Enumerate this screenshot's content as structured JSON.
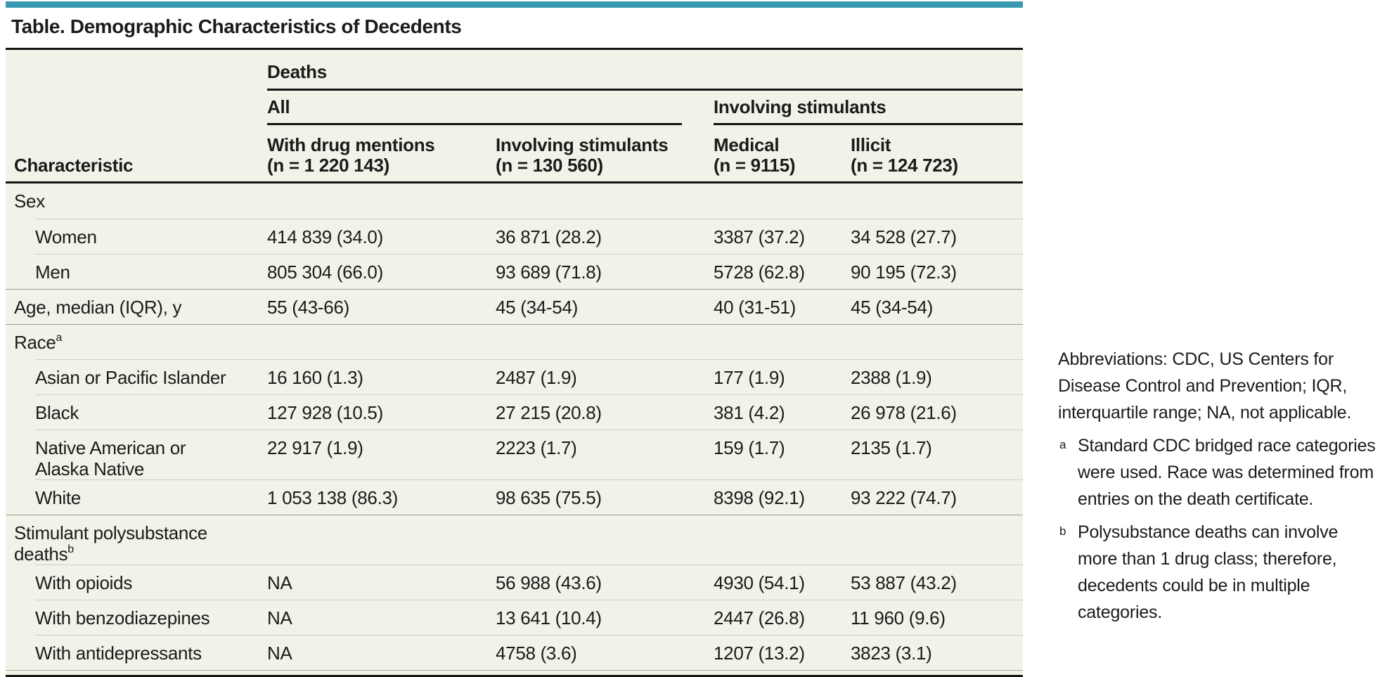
{
  "colors": {
    "accent": "#3a99b2",
    "table_background": "#f3f2e8",
    "rule_heavy": "#141414",
    "rule_light": "#cfcec1",
    "rule_group": "#9e9d91"
  },
  "title": "Table. Demographic Characteristics of Decedents",
  "table": {
    "deaths_spanner": "Deaths",
    "all_spanner": "All",
    "involving_stimulants_spanner": "Involving stimulants",
    "columns": {
      "characteristic": "Characteristic",
      "with_drug_mentions": {
        "line1": "With drug mentions",
        "line2": "(n = 1 220 143)"
      },
      "involving_stimulants": {
        "line1": "Involving stimulants",
        "line2": "(n = 130 560)"
      },
      "medical": {
        "line1": "Medical",
        "line2": "(n = 9115)"
      },
      "illicit": {
        "line1": "Illicit",
        "line2": "(n = 124 723)"
      }
    },
    "rows": [
      {
        "type": "group",
        "label": "Sex"
      },
      {
        "type": "item",
        "label": "Women",
        "cells": [
          "414 839 (34.0)",
          "36 871 (28.2)",
          "3387 (37.2)",
          "34 528 (27.7)"
        ]
      },
      {
        "type": "item",
        "label": "Men",
        "cells": [
          "805 304 (66.0)",
          "93 689 (71.8)",
          "5728 (62.8)",
          "90 195 (72.3)"
        ]
      },
      {
        "type": "flat",
        "label": "Age, median (IQR), y",
        "cells": [
          "55 (43-66)",
          "45 (34-54)",
          "40 (31-51)",
          "45 (34-54)"
        ]
      },
      {
        "type": "group",
        "label": "Race",
        "sup": "a"
      },
      {
        "type": "item",
        "label": "Asian or Pacific Islander",
        "cells": [
          "16 160 (1.3)",
          "2487 (1.9)",
          "177 (1.9)",
          "2388 (1.9)"
        ]
      },
      {
        "type": "item",
        "label": "Black",
        "cells": [
          "127 928 (10.5)",
          "27 215 (20.8)",
          "381 (4.2)",
          "26 978 (21.6)"
        ]
      },
      {
        "type": "item",
        "label": "Native American or",
        "label2": "Alaska Native",
        "cells": [
          "22 917 (1.9)",
          "2223 (1.7)",
          "159 (1.7)",
          "2135 (1.7)"
        ]
      },
      {
        "type": "item",
        "label": "White",
        "cells": [
          "1 053 138 (86.3)",
          "98 635 (75.5)",
          "8398 (92.1)",
          "93 222 (74.7)"
        ]
      },
      {
        "type": "group",
        "label": "Stimulant polysubstance",
        "label2": "deaths",
        "sup": "b"
      },
      {
        "type": "item",
        "label": "With opioids",
        "cells": [
          "NA",
          "56 988 (43.6)",
          "4930 (54.1)",
          "53 887 (43.2)"
        ]
      },
      {
        "type": "item",
        "label": "With benzodiazepines",
        "cells": [
          "NA",
          "13 641 (10.4)",
          "2447 (26.8)",
          "11 960 (9.6)"
        ]
      },
      {
        "type": "item",
        "label": "With antidepressants",
        "cells": [
          "NA",
          "4758 (3.6)",
          "1207 (13.2)",
          "3823 (3.1)"
        ]
      }
    ]
  },
  "footnotes": {
    "abbreviations": "Abbreviations: CDC, US Centers for Disease Control and Prevention; IQR, interquartile range; NA, not applicable.",
    "a_marker": "a",
    "a_text": "Standard CDC bridged race categories were used. Race was determined from entries on the death certificate.",
    "b_marker": "b",
    "b_text": "Polysubstance deaths can involve more than 1 drug class; therefore, decedents could be in multiple categories."
  }
}
